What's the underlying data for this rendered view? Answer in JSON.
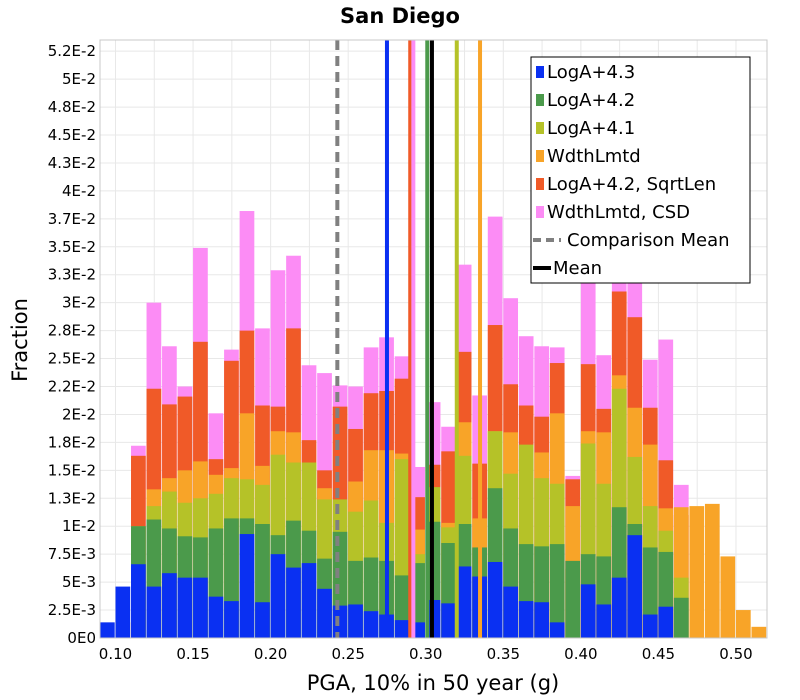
{
  "chart_data": {
    "type": "bar",
    "title": "San Diego",
    "xlabel": "PGA, 10% in 50 year (g)",
    "ylabel": "Fraction",
    "xlim": [
      0.09,
      0.52
    ],
    "ylim": [
      0,
      0.0535
    ],
    "bin_width": 0.01,
    "x_ticks": [
      {
        "value": 0.1,
        "label": "0.10"
      },
      {
        "value": 0.15,
        "label": "0.15"
      },
      {
        "value": 0.2,
        "label": "0.20"
      },
      {
        "value": 0.25,
        "label": "0.25"
      },
      {
        "value": 0.3,
        "label": "0.30"
      },
      {
        "value": 0.35,
        "label": "0.35"
      },
      {
        "value": 0.4,
        "label": "0.40"
      },
      {
        "value": 0.45,
        "label": "0.45"
      },
      {
        "value": 0.5,
        "label": "0.50"
      }
    ],
    "y_ticks": [
      {
        "value": 0,
        "label": "0E0"
      },
      {
        "value": 0.0025,
        "label": "2.5E-3"
      },
      {
        "value": 0.005,
        "label": "5E-3"
      },
      {
        "value": 0.0075,
        "label": "7.5E-3"
      },
      {
        "value": 0.01,
        "label": "1E-2"
      },
      {
        "value": 0.0125,
        "label": "1.3E-2"
      },
      {
        "value": 0.015,
        "label": "1.5E-2"
      },
      {
        "value": 0.0175,
        "label": "1.8E-2"
      },
      {
        "value": 0.02,
        "label": "2E-2"
      },
      {
        "value": 0.0225,
        "label": "2.2E-2"
      },
      {
        "value": 0.025,
        "label": "2.5E-2"
      },
      {
        "value": 0.0275,
        "label": "2.8E-2"
      },
      {
        "value": 0.03,
        "label": "3E-2"
      },
      {
        "value": 0.0325,
        "label": "3.3E-2"
      },
      {
        "value": 0.035,
        "label": "3.5E-2"
      },
      {
        "value": 0.0375,
        "label": "3.7E-2"
      },
      {
        "value": 0.04,
        "label": "4E-2"
      },
      {
        "value": 0.0425,
        "label": "4.3E-2"
      },
      {
        "value": 0.045,
        "label": "4.5E-2"
      },
      {
        "value": 0.0475,
        "label": "4.8E-2"
      },
      {
        "value": 0.05,
        "label": "5E-2"
      },
      {
        "value": 0.0525,
        "label": "5.2E-2"
      }
    ],
    "grid": true,
    "legend_position": "top-right",
    "series": [
      {
        "name": "WdthLmtd, CSD",
        "color": "#fc8cf5",
        "x": [
          0.115,
          0.125,
          0.135,
          0.145,
          0.155,
          0.165,
          0.175,
          0.185,
          0.195,
          0.205,
          0.215,
          0.225,
          0.235,
          0.245,
          0.255,
          0.265,
          0.275,
          0.285,
          0.295,
          0.305,
          0.315,
          0.325,
          0.335,
          0.345,
          0.355,
          0.365,
          0.375,
          0.385,
          0.395,
          0.405,
          0.415,
          0.425,
          0.435,
          0.445,
          0.455,
          0.465
        ],
        "values": [
          0.0172,
          0.03,
          0.0261,
          0.0225,
          0.0349,
          0.0201,
          0.0258,
          0.0382,
          0.0277,
          0.0329,
          0.0342,
          0.0244,
          0.0237,
          0.0226,
          0.0225,
          0.026,
          0.0269,
          0.0252,
          0.0153,
          0.0211,
          0.0189,
          0.0334,
          0.0217,
          0.0377,
          0.0304,
          0.027,
          0.0261,
          0.026,
          0.0145,
          0.0326,
          0.0253,
          0.0329,
          0.0425,
          0.0249,
          0.0267,
          0.0137
        ]
      },
      {
        "name": "LogA+4.2, SqrtLen",
        "color": "#f05a28",
        "x": [
          0.115,
          0.125,
          0.135,
          0.145,
          0.155,
          0.165,
          0.175,
          0.185,
          0.195,
          0.205,
          0.215,
          0.225,
          0.235,
          0.245,
          0.255,
          0.265,
          0.275,
          0.285,
          0.295,
          0.305,
          0.315,
          0.325,
          0.335,
          0.345,
          0.355,
          0.365,
          0.375,
          0.385,
          0.395,
          0.405,
          0.415,
          0.425,
          0.435,
          0.445,
          0.455,
          0.465
        ],
        "values": [
          0.0163,
          0.0223,
          0.0209,
          0.0216,
          0.0265,
          0.016,
          0.0248,
          0.0275,
          0.0208,
          0.0207,
          0.0277,
          0.0177,
          0.015,
          0.0207,
          0.0187,
          0.0219,
          0.0221,
          0.0232,
          0.0126,
          0.0155,
          0.0167,
          0.0256,
          0.0156,
          0.028,
          0.0227,
          0.0208,
          0.0198,
          0.0246,
          0.0142,
          0.0245,
          0.0205,
          0.031,
          0.0287,
          0.0206,
          0.0159,
          0.011
        ]
      },
      {
        "name": "WdthLmtd",
        "color": "#f8a428",
        "x": [
          0.105,
          0.115,
          0.125,
          0.135,
          0.145,
          0.155,
          0.165,
          0.175,
          0.185,
          0.195,
          0.205,
          0.215,
          0.225,
          0.235,
          0.245,
          0.255,
          0.265,
          0.275,
          0.285,
          0.295,
          0.305,
          0.315,
          0.325,
          0.335,
          0.345,
          0.355,
          0.365,
          0.375,
          0.385,
          0.395,
          0.405,
          0.415,
          0.425,
          0.435,
          0.445,
          0.455,
          0.465,
          0.475,
          0.485,
          0.495,
          0.505,
          0.515
        ],
        "values": [
          0.0014,
          0.0052,
          0.0133,
          0.0143,
          0.015,
          0.0158,
          0.0146,
          0.0152,
          0.0201,
          0.0154,
          0.0185,
          0.0184,
          0.0146,
          0.0134,
          0.0116,
          0.014,
          0.0168,
          0.0168,
          0.0165,
          0.0097,
          0.0107,
          0.0103,
          0.0193,
          0.0107,
          0.0185,
          0.0184,
          0.016,
          0.0166,
          0.0201,
          0.0118,
          0.0185,
          0.0184,
          0.0235,
          0.0206,
          0.0173,
          0.0116,
          0.0117,
          0.0118,
          0.012,
          0.0073,
          0.0025,
          0.001
        ]
      },
      {
        "name": "LogA+4.1",
        "color": "#b5c228",
        "x": [
          0.115,
          0.125,
          0.135,
          0.145,
          0.155,
          0.165,
          0.175,
          0.185,
          0.195,
          0.205,
          0.215,
          0.225,
          0.235,
          0.245,
          0.255,
          0.265,
          0.275,
          0.285,
          0.295,
          0.305,
          0.315,
          0.325,
          0.335,
          0.345,
          0.355,
          0.365,
          0.375,
          0.385,
          0.395,
          0.405,
          0.415,
          0.425,
          0.435,
          0.445,
          0.455,
          0.465
        ],
        "values": [
          0.01,
          0.0118,
          0.0131,
          0.0121,
          0.0125,
          0.0129,
          0.0143,
          0.0142,
          0.0137,
          0.0164,
          0.0157,
          0.0157,
          0.0124,
          0.0124,
          0.0113,
          0.0123,
          0.0103,
          0.016,
          0.0075,
          0.0135,
          0.0099,
          0.0163,
          0.0079,
          0.0185,
          0.0147,
          0.0173,
          0.0143,
          0.0138,
          0.0062,
          0.0174,
          0.0138,
          0.0223,
          0.0162,
          0.0118,
          0.0096,
          0.0054
        ]
      },
      {
        "name": "LogA+4.2",
        "color": "#4b9a4b",
        "x": [
          0.115,
          0.125,
          0.135,
          0.145,
          0.155,
          0.165,
          0.175,
          0.185,
          0.195,
          0.205,
          0.215,
          0.225,
          0.235,
          0.245,
          0.255,
          0.265,
          0.275,
          0.285,
          0.295,
          0.305,
          0.315,
          0.325,
          0.335,
          0.345,
          0.355,
          0.365,
          0.375,
          0.385,
          0.395,
          0.405,
          0.415,
          0.425,
          0.435,
          0.445,
          0.455,
          0.465
        ],
        "values": [
          0.01,
          0.0106,
          0.0098,
          0.0091,
          0.009,
          0.0098,
          0.0107,
          0.0107,
          0.0102,
          0.0092,
          0.0105,
          0.0096,
          0.0071,
          0.0095,
          0.0069,
          0.0072,
          0.0069,
          0.0056,
          0.0067,
          0.0104,
          0.0085,
          0.0102,
          0.0081,
          0.0134,
          0.0098,
          0.0084,
          0.0082,
          0.0084,
          0.0069,
          0.0075,
          0.0073,
          0.0117,
          0.0102,
          0.0081,
          0.0077,
          0.0036
        ]
      },
      {
        "name": "LogA+4.3",
        "color": "#0a30f2",
        "x": [
          0.095,
          0.105,
          0.115,
          0.125,
          0.135,
          0.145,
          0.155,
          0.165,
          0.175,
          0.185,
          0.195,
          0.205,
          0.215,
          0.225,
          0.235,
          0.245,
          0.255,
          0.265,
          0.275,
          0.285,
          0.295,
          0.305,
          0.315,
          0.325,
          0.335,
          0.345,
          0.355,
          0.365,
          0.375,
          0.385,
          0.395,
          0.405,
          0.415,
          0.425,
          0.435,
          0.445,
          0.455,
          0.465
        ],
        "values": [
          0.0014,
          0.0046,
          0.0066,
          0.0046,
          0.0058,
          0.0054,
          0.0054,
          0.0037,
          0.0033,
          0.0093,
          0.0032,
          0.0075,
          0.0063,
          0.0067,
          0.0044,
          0.0029,
          0.003,
          0.0024,
          0.0021,
          0.0016,
          0.0014,
          0.0034,
          0.0031,
          0.0064,
          0.0055,
          0.0068,
          0.0046,
          0.0033,
          0.0032,
          0.0014,
          0.0,
          0.0048,
          0.003,
          0.0054,
          0.0092,
          0.0021,
          0.0028,
          0.0
        ]
      }
    ],
    "vertical_lines": [
      {
        "name": "LogA+4.3",
        "x": 0.275,
        "color": "#0a30f2",
        "style": "solid"
      },
      {
        "name": "LogA+4.2, SqrtLen",
        "x": 0.29,
        "color": "#f05a28",
        "style": "solid"
      },
      {
        "name": "WdthLmtd, CSD",
        "x": 0.292,
        "color": "#fc8cf5",
        "style": "solid"
      },
      {
        "name": "LogA+4.2",
        "x": 0.301,
        "color": "#4b9a4b",
        "style": "solid"
      },
      {
        "name": "LogA+4.1",
        "x": 0.32,
        "color": "#b5c228",
        "style": "solid"
      },
      {
        "name": "WdthLmtd",
        "x": 0.335,
        "color": "#f8a428",
        "style": "solid"
      },
      {
        "name": "Comparison Mean",
        "x": 0.243,
        "color": "#808080",
        "style": "dashed"
      },
      {
        "name": "Mean",
        "x": 0.304,
        "color": "#000000",
        "style": "solid"
      }
    ],
    "legend": [
      {
        "label": "LogA+4.3",
        "color": "#0a30f2",
        "kind": "box"
      },
      {
        "label": "LogA+4.2",
        "color": "#4b9a4b",
        "kind": "box"
      },
      {
        "label": "LogA+4.1",
        "color": "#b5c228",
        "kind": "box"
      },
      {
        "label": "WdthLmtd",
        "color": "#f8a428",
        "kind": "box"
      },
      {
        "label": "LogA+4.2, SqrtLen",
        "color": "#f05a28",
        "kind": "box"
      },
      {
        "label": "WdthLmtd, CSD",
        "color": "#fc8cf5",
        "kind": "box"
      },
      {
        "label": "Comparison Mean",
        "color": "#808080",
        "kind": "dashed-line"
      },
      {
        "label": "Mean",
        "color": "#000000",
        "kind": "line"
      }
    ]
  }
}
